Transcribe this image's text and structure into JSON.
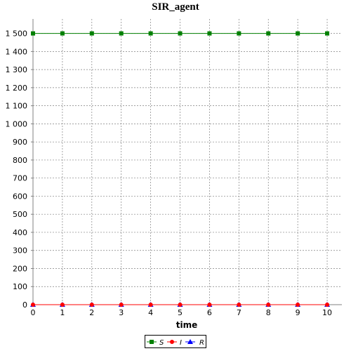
{
  "chart_data": {
    "type": "line",
    "title": "SIR_agent",
    "xlabel": "time",
    "ylabel": "",
    "x": [
      0,
      1,
      2,
      3,
      4,
      5,
      6,
      7,
      8,
      9,
      10
    ],
    "xlim": [
      0,
      10.5
    ],
    "ylim": [
      0,
      1580
    ],
    "xticks": [
      0,
      1,
      2,
      3,
      4,
      5,
      6,
      7,
      8,
      9,
      10
    ],
    "yticks": [
      0,
      100,
      200,
      300,
      400,
      500,
      600,
      700,
      800,
      900,
      1000,
      1100,
      1200,
      1300,
      1400,
      1500
    ],
    "ytick_labels": [
      "0",
      "100",
      "200",
      "300",
      "400",
      "500",
      "600",
      "700",
      "800",
      "900",
      "1 000",
      "1 100",
      "1 200",
      "1 300",
      "1 400",
      "1 500"
    ],
    "grid": true,
    "legend_position": "bottom-center",
    "series": [
      {
        "name": "S",
        "color": "#008000",
        "marker": "square",
        "values": [
          1500,
          1500,
          1500,
          1500,
          1500,
          1500,
          1500,
          1500,
          1500,
          1500,
          1500
        ]
      },
      {
        "name": "I",
        "color": "#ff0000",
        "marker": "circle",
        "values": [
          0,
          0,
          0,
          0,
          0,
          0,
          0,
          0,
          0,
          0,
          0
        ]
      },
      {
        "name": "R",
        "color": "#0000ff",
        "marker": "triangle",
        "values": [
          0,
          0,
          0,
          0,
          0,
          0,
          0,
          0,
          0,
          0,
          0
        ]
      }
    ]
  }
}
